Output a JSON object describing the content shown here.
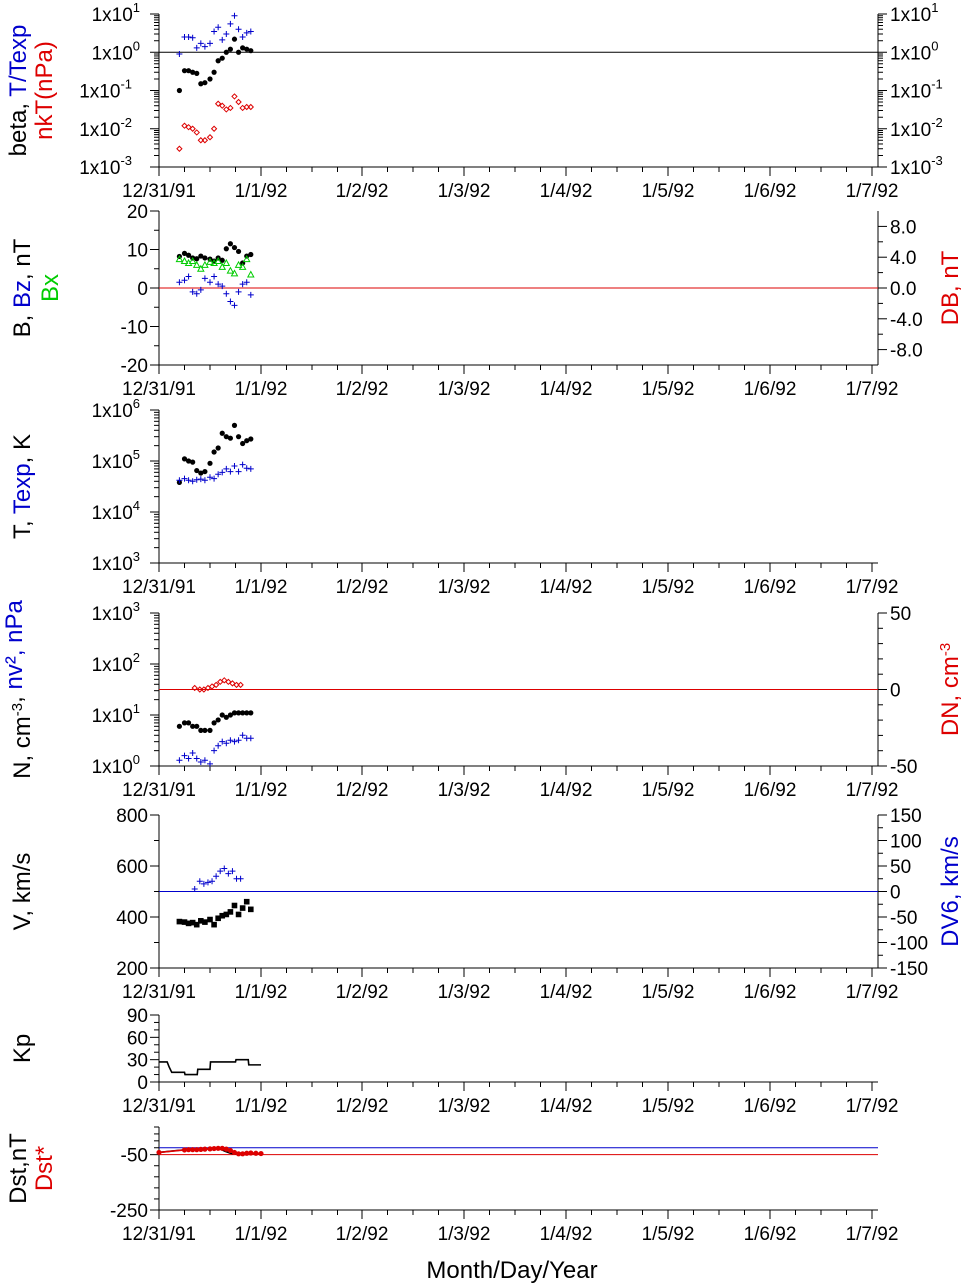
{
  "x_tick_labels": [
    "12/31/91",
    "1/1/92",
    "1/2/92",
    "1/3/92",
    "1/4/92",
    "1/5/92",
    "1/6/92",
    "1/7/92"
  ],
  "x_axis_title": "Month/Day/Year",
  "colors": {
    "black": "#000000",
    "blue": "#0000cc",
    "red": "#dd0000",
    "green": "#00cc00"
  },
  "chart_data": [
    {
      "id": "beta",
      "type": "scatter",
      "yscale": "log",
      "ylim": [
        0.001,
        10
      ],
      "y_ticks": [
        {
          "v": 10,
          "m": "1x10",
          "e": "1"
        },
        {
          "v": 1,
          "m": "1x10",
          "e": "0"
        },
        {
          "v": 0.1,
          "m": "1x10",
          "e": "-1"
        },
        {
          "v": 0.01,
          "m": "1x10",
          "e": "-2"
        },
        {
          "v": 0.001,
          "m": "1x10",
          "e": "-3"
        }
      ],
      "right_ticks_mirror": true,
      "ylabel": [
        [
          {
            "t": "beta, ",
            "c": "black"
          },
          {
            "t": "T/Texp",
            "c": "blue"
          }
        ],
        [
          {
            "t": "nkT(nPa)",
            "c": "red"
          }
        ]
      ],
      "hlines": [
        {
          "v": 1,
          "c": "black"
        }
      ],
      "x_units": "days since 12/31/91",
      "series": [
        {
          "marker": "dot",
          "color": "black",
          "x": [
            0.2,
            0.25,
            0.29,
            0.33,
            0.37,
            0.41,
            0.45,
            0.5,
            0.54,
            0.58,
            0.62,
            0.66,
            0.7,
            0.74,
            0.78,
            0.82,
            0.86,
            0.9
          ],
          "y": [
            0.1,
            0.33,
            0.33,
            0.3,
            0.28,
            0.15,
            0.16,
            0.2,
            0.3,
            0.6,
            0.7,
            1.0,
            1.2,
            2.2,
            1.0,
            1.3,
            1.2,
            1.1
          ]
        },
        {
          "marker": "plus",
          "color": "blue",
          "x": [
            0.2,
            0.25,
            0.29,
            0.33,
            0.37,
            0.41,
            0.45,
            0.5,
            0.54,
            0.58,
            0.62,
            0.66,
            0.7,
            0.74,
            0.78,
            0.82,
            0.86,
            0.9
          ],
          "y": [
            0.9,
            2.5,
            2.5,
            2.4,
            1.3,
            1.7,
            1.4,
            1.7,
            3.5,
            4.5,
            2.1,
            3.0,
            5.5,
            9.0,
            4.0,
            2.5,
            3.2,
            3.5
          ]
        },
        {
          "marker": "diamond",
          "color": "red",
          "x": [
            0.2,
            0.25,
            0.29,
            0.33,
            0.37,
            0.41,
            0.45,
            0.5,
            0.54,
            0.58,
            0.62,
            0.66,
            0.7,
            0.74,
            0.78,
            0.82,
            0.86,
            0.9
          ],
          "y": [
            0.003,
            0.012,
            0.011,
            0.01,
            0.008,
            0.005,
            0.005,
            0.006,
            0.01,
            0.045,
            0.04,
            0.032,
            0.035,
            0.07,
            0.05,
            0.035,
            0.037,
            0.037
          ]
        }
      ]
    },
    {
      "id": "mag",
      "type": "scatter",
      "yscale": "linear",
      "ylim": [
        -20,
        20
      ],
      "y_ticks": [
        {
          "v": 20,
          "t": "20"
        },
        {
          "v": 10,
          "t": "10"
        },
        {
          "v": 0,
          "t": "0"
        },
        {
          "v": -10,
          "t": "-10"
        },
        {
          "v": -20,
          "t": "-20"
        }
      ],
      "right_axis": {
        "ylim": [
          -10,
          10
        ],
        "ticks": [
          {
            "v": 8,
            "t": "8.0"
          },
          {
            "v": 4,
            "t": "4.0"
          },
          {
            "v": 0,
            "t": "0.0"
          },
          {
            "v": -4,
            "t": "-4.0"
          },
          {
            "v": -8,
            "t": "-8.0"
          }
        ],
        "label": [
          [
            {
              "t": "DB, nT",
              "c": "red"
            }
          ]
        ]
      },
      "ylabel": [
        [
          {
            "t": "B, ",
            "c": "black"
          },
          {
            "t": "Bz",
            "c": "blue"
          },
          {
            "t": ", nT",
            "c": "black"
          }
        ],
        [
          {
            "t": "Bx",
            "c": "green"
          }
        ]
      ],
      "hlines": [
        {
          "v": 0,
          "c": "red"
        }
      ],
      "series": [
        {
          "marker": "dot",
          "color": "black",
          "x": [
            0.2,
            0.25,
            0.29,
            0.33,
            0.37,
            0.41,
            0.45,
            0.5,
            0.54,
            0.58,
            0.62,
            0.66,
            0.7,
            0.74,
            0.78,
            0.82,
            0.86,
            0.9
          ],
          "y": [
            8.2,
            9.0,
            8.5,
            7.8,
            7.6,
            8.3,
            7.8,
            7.5,
            7.0,
            7.8,
            7.2,
            10.2,
            11.5,
            10.5,
            9.5,
            6.5,
            8.3,
            8.7
          ]
        },
        {
          "marker": "plus",
          "color": "blue",
          "x": [
            0.2,
            0.25,
            0.29,
            0.33,
            0.37,
            0.41,
            0.45,
            0.5,
            0.54,
            0.58,
            0.62,
            0.66,
            0.7,
            0.74,
            0.78,
            0.82,
            0.86,
            0.9
          ],
          "y": [
            1.5,
            2.0,
            3.0,
            -1.0,
            -1.5,
            -0.5,
            2.5,
            1.5,
            3.0,
            1.0,
            0.5,
            -1.5,
            -3.5,
            -4.5,
            -1.0,
            1.0,
            1.5,
            -1.8
          ]
        },
        {
          "marker": "tri",
          "color": "green",
          "x": [
            0.2,
            0.25,
            0.29,
            0.33,
            0.37,
            0.41,
            0.45,
            0.5,
            0.54,
            0.58,
            0.62,
            0.66,
            0.7,
            0.74,
            0.78,
            0.82,
            0.86,
            0.9
          ],
          "y": [
            7.5,
            7.0,
            6.5,
            7.0,
            6.0,
            5.0,
            6.0,
            6.8,
            6.5,
            7.0,
            5.5,
            6.5,
            4.5,
            3.8,
            6.0,
            5.5,
            7.5,
            3.5
          ]
        }
      ]
    },
    {
      "id": "temp",
      "type": "scatter",
      "yscale": "log",
      "ylim": [
        1000,
        1000000
      ],
      "y_ticks": [
        {
          "v": 1000000,
          "m": "1x10",
          "e": "6"
        },
        {
          "v": 100000,
          "m": "1x10",
          "e": "5"
        },
        {
          "v": 10000,
          "m": "1x10",
          "e": "4"
        },
        {
          "v": 1000,
          "m": "1x10",
          "e": "3"
        }
      ],
      "ylabel": [
        [
          {
            "t": "T, ",
            "c": "black"
          },
          {
            "t": "Texp",
            "c": "blue"
          },
          {
            "t": ", K",
            "c": "black"
          }
        ]
      ],
      "series": [
        {
          "marker": "dot",
          "color": "black",
          "x": [
            0.2,
            0.25,
            0.29,
            0.33,
            0.37,
            0.41,
            0.45,
            0.5,
            0.54,
            0.58,
            0.62,
            0.66,
            0.7,
            0.74,
            0.78,
            0.82,
            0.86,
            0.9
          ],
          "y": [
            38000,
            110000,
            100000,
            95000,
            65000,
            58000,
            62000,
            90000,
            150000,
            180000,
            350000,
            300000,
            280000,
            500000,
            300000,
            220000,
            250000,
            270000
          ]
        },
        {
          "marker": "plus",
          "color": "blue",
          "x": [
            0.2,
            0.25,
            0.29,
            0.33,
            0.37,
            0.41,
            0.45,
            0.5,
            0.54,
            0.58,
            0.62,
            0.66,
            0.7,
            0.74,
            0.78,
            0.82,
            0.86,
            0.9
          ],
          "y": [
            42000,
            45000,
            42000,
            40000,
            43000,
            44000,
            42000,
            48000,
            45000,
            55000,
            60000,
            70000,
            62000,
            80000,
            62000,
            85000,
            72000,
            70000
          ]
        }
      ]
    },
    {
      "id": "density",
      "type": "scatter",
      "yscale": "log",
      "ylim": [
        1,
        1000
      ],
      "y_ticks": [
        {
          "v": 1000,
          "m": "1x10",
          "e": "3"
        },
        {
          "v": 100,
          "m": "1x10",
          "e": "2"
        },
        {
          "v": 10,
          "m": "1x10",
          "e": "1"
        },
        {
          "v": 1,
          "m": "1x10",
          "e": "0"
        }
      ],
      "right_axis": {
        "ylim": [
          -50,
          50
        ],
        "ticks": [
          {
            "v": 50,
            "t": "50"
          },
          {
            "v": 0,
            "t": "0"
          },
          {
            "v": -50,
            "t": "-50"
          }
        ],
        "label": [
          [
            {
              "t": "DN, cm",
              "c": "red"
            },
            {
              "t": "-3",
              "c": "red",
              "sup": true
            }
          ]
        ]
      },
      "ylabel": [
        [
          {
            "t": "N, cm",
            "c": "black"
          },
          {
            "t": "-3",
            "c": "black",
            "sup": true
          },
          {
            "t": ", ",
            "c": "black"
          },
          {
            "t": "nv², nPa",
            "c": "blue"
          }
        ]
      ],
      "hlines": [
        {
          "v": 0,
          "c": "red",
          "axis": "right"
        }
      ],
      "series": [
        {
          "marker": "dot",
          "color": "black",
          "x": [
            0.2,
            0.25,
            0.29,
            0.33,
            0.37,
            0.41,
            0.45,
            0.5,
            0.54,
            0.58,
            0.62,
            0.66,
            0.7,
            0.74,
            0.78,
            0.82,
            0.86,
            0.9
          ],
          "y": [
            6,
            7,
            7,
            6,
            6,
            5,
            5,
            5,
            7,
            8,
            10,
            9,
            10,
            11,
            11,
            11,
            11,
            11
          ]
        },
        {
          "marker": "plus",
          "color": "blue",
          "x": [
            0.2,
            0.25,
            0.29,
            0.33,
            0.37,
            0.41,
            0.45,
            0.5,
            0.54,
            0.58,
            0.62,
            0.66,
            0.7,
            0.74,
            0.78,
            0.82,
            0.86,
            0.9
          ],
          "y": [
            1.3,
            1.6,
            1.4,
            1.8,
            1.4,
            1.2,
            1.3,
            1.1,
            2.0,
            2.5,
            3.0,
            2.8,
            3.2,
            3.0,
            3.2,
            4.0,
            3.5,
            3.5
          ]
        },
        {
          "marker": "diamond",
          "color": "red",
          "axis": "right",
          "x": [
            0.35,
            0.4,
            0.44,
            0.48,
            0.52,
            0.56,
            0.6,
            0.64,
            0.68,
            0.72,
            0.76,
            0.8
          ],
          "y": [
            1,
            0,
            0,
            1,
            2,
            3,
            5,
            6,
            5,
            4,
            3,
            3
          ]
        }
      ]
    },
    {
      "id": "velocity",
      "type": "scatter",
      "yscale": "linear",
      "ylim": [
        200,
        800
      ],
      "y_ticks": [
        {
          "v": 800,
          "t": "800"
        },
        {
          "v": 600,
          "t": "600"
        },
        {
          "v": 400,
          "t": "400"
        },
        {
          "v": 200,
          "t": "200"
        }
      ],
      "right_axis": {
        "ylim": [
          -150,
          150
        ],
        "ticks": [
          {
            "v": 150,
            "t": "150"
          },
          {
            "v": 100,
            "t": "100"
          },
          {
            "v": 50,
            "t": "50"
          },
          {
            "v": 0,
            "t": "0"
          },
          {
            "v": -50,
            "t": "-50"
          },
          {
            "v": -100,
            "t": "-100"
          },
          {
            "v": -150,
            "t": "-150"
          }
        ],
        "label": [
          [
            {
              "t": "DV6, km/s",
              "c": "blue"
            }
          ]
        ]
      },
      "ylabel": [
        [
          {
            "t": "V, km/s",
            "c": "black"
          }
        ]
      ],
      "hlines": [
        {
          "v": 0,
          "c": "blue",
          "axis": "right"
        }
      ],
      "series": [
        {
          "marker": "square",
          "color": "black",
          "x": [
            0.2,
            0.25,
            0.29,
            0.33,
            0.37,
            0.41,
            0.45,
            0.5,
            0.54,
            0.58,
            0.62,
            0.66,
            0.7,
            0.74,
            0.78,
            0.82,
            0.86,
            0.9
          ],
          "y": [
            382,
            380,
            375,
            378,
            370,
            385,
            380,
            390,
            370,
            395,
            405,
            410,
            420,
            445,
            410,
            435,
            460,
            430
          ]
        },
        {
          "marker": "plus",
          "color": "blue",
          "axis": "right",
          "x": [
            0.35,
            0.4,
            0.44,
            0.48,
            0.52,
            0.56,
            0.6,
            0.64,
            0.68,
            0.72,
            0.76,
            0.8
          ],
          "y": [
            5,
            20,
            15,
            18,
            20,
            30,
            40,
            45,
            35,
            40,
            25,
            25
          ]
        }
      ]
    },
    {
      "id": "kp",
      "type": "line",
      "yscale": "linear",
      "ylim": [
        0,
        90
      ],
      "y_ticks": [
        {
          "v": 90,
          "t": "90"
        },
        {
          "v": 60,
          "t": "60"
        },
        {
          "v": 30,
          "t": "30"
        },
        {
          "v": 0,
          "t": "0"
        }
      ],
      "ylabel": [
        [
          {
            "t": "Kp",
            "c": "black"
          }
        ]
      ],
      "series": [
        {
          "marker": "line",
          "color": "black",
          "x": [
            0,
            0.08,
            0.1,
            0.125,
            0.25,
            0.255,
            0.375,
            0.38,
            0.5,
            0.505,
            0.625,
            0.63,
            0.75,
            0.755,
            0.875,
            0.88,
            1.0
          ],
          "y": [
            27,
            27,
            20,
            13,
            13,
            10,
            10,
            17,
            17,
            27,
            27,
            27,
            27,
            30,
            30,
            23,
            23
          ]
        }
      ]
    },
    {
      "id": "dst",
      "type": "line",
      "yscale": "linear",
      "ylim": [
        -250,
        50
      ],
      "y_ticks": [
        {
          "v": -50,
          "t": "-50"
        },
        {
          "v": -250,
          "t": "-250"
        }
      ],
      "ylabel": [
        [
          {
            "t": "Dst,nT",
            "c": "black"
          }
        ],
        [
          {
            "t": "Dst*",
            "c": "red"
          }
        ]
      ],
      "hlines": [
        {
          "v": -25,
          "c": "blue"
        },
        {
          "v": -50,
          "c": "red"
        }
      ],
      "series": [
        {
          "marker": "line",
          "color": "black",
          "x": [
            0,
            0.1,
            0.2,
            0.25,
            0.3,
            0.35,
            0.4,
            0.45,
            0.5,
            0.55,
            0.6,
            0.65,
            0.7,
            0.75,
            0.8,
            0.85,
            0.9,
            1.0
          ],
          "y": [
            -42,
            -38,
            -34,
            -33,
            -32,
            -32,
            -31,
            -30,
            -28,
            -27,
            -30,
            -38,
            -45,
            -48,
            -45,
            -44,
            -45,
            -46
          ]
        },
        {
          "marker": "dot",
          "color": "red",
          "x": [
            0,
            0.25,
            0.29,
            0.33,
            0.37,
            0.41,
            0.45,
            0.5,
            0.54,
            0.58,
            0.62,
            0.66,
            0.7,
            0.74,
            0.78,
            0.82,
            0.86,
            0.9,
            0.95,
            1.0
          ],
          "y": [
            -42,
            -33,
            -32,
            -32,
            -32,
            -31,
            -30,
            -29,
            -28,
            -27,
            -27,
            -30,
            -35,
            -42,
            -47,
            -47,
            -45,
            -44,
            -45,
            -46
          ]
        }
      ]
    }
  ]
}
